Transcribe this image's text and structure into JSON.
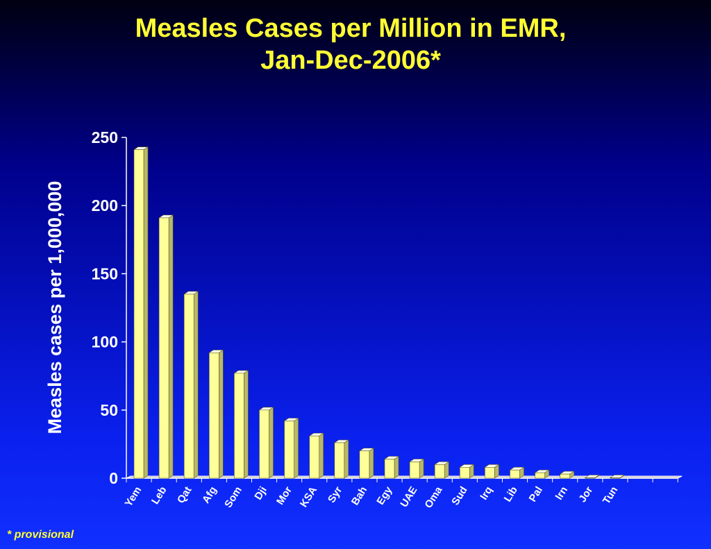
{
  "title_line1": "Measles Cases per Million in EMR,",
  "title_line2": "Jan-Dec-2006*",
  "footnote": "* provisional",
  "colors": {
    "title": "#ffff33",
    "bar_face": "#ffff99",
    "text": "#ffffff"
  },
  "chart_data": {
    "type": "bar",
    "title": "Measles Cases per Million in EMR, Jan-Dec-2006*",
    "xlabel": "",
    "ylabel": "Measles cases per 1,000,000",
    "ylim": [
      0,
      250
    ],
    "yticks": [
      0,
      50,
      100,
      150,
      200,
      250
    ],
    "categories": [
      "Yem",
      "Leb",
      "Qat",
      "Afg",
      "Som",
      "Dji",
      "Mor",
      "KSA",
      "Syr",
      "Bah",
      "Egy",
      "UAE",
      "Oma",
      "Sud",
      "Irq",
      "Lib",
      "Pal",
      "Irn",
      "Jor",
      "Tun"
    ],
    "values": [
      241,
      191,
      135,
      92,
      77,
      50,
      42,
      31,
      26,
      20,
      14,
      12,
      10,
      8,
      8,
      6,
      4,
      3,
      0.3,
      0.3
    ],
    "grid": false,
    "legend": "none"
  }
}
